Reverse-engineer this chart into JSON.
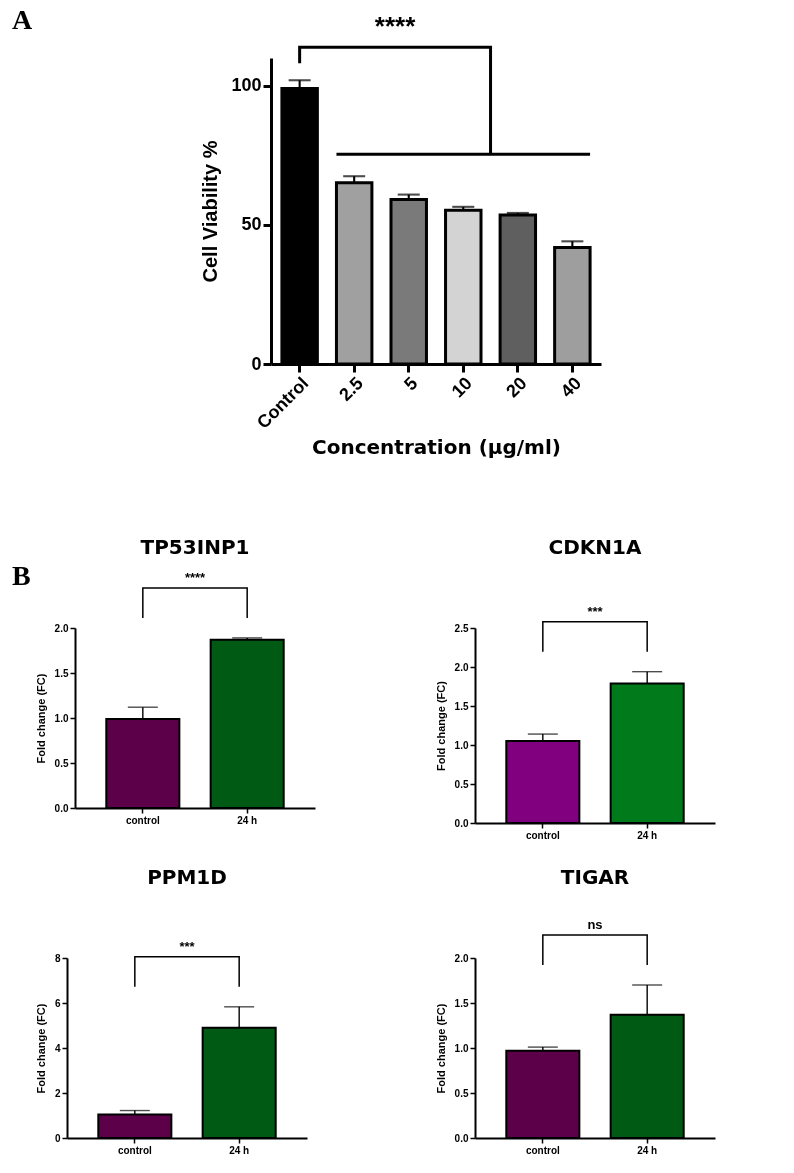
{
  "chart_data": [
    {
      "type": "bar",
      "xlabel": "Concentration (µg/ml)",
      "ylabel": "Cell Viability %",
      "categories": [
        "Control",
        "2.5",
        "5",
        "10",
        "20",
        "40"
      ],
      "values": [
        99,
        65.2,
        59.1,
        55.3,
        53.6,
        41.9
      ],
      "errors": [
        3,
        2.3,
        1.8,
        1.2,
        0.7,
        2.2
      ],
      "colors": [
        "#000000",
        "#a0a0a0",
        "#7a7a7a",
        "#d3d3d3",
        "#5f5f5f",
        "#9e9e9e"
      ],
      "ylim": [
        0,
        110
      ],
      "yticks": [
        0,
        50,
        100
      ],
      "annotations": [
        "A",
        "****"
      ]
    },
    {
      "type": "bar",
      "title": "TP53INP1",
      "ylabel": "Fold change (FC)",
      "categories": [
        "control",
        "24 h"
      ],
      "values": [
        0.99,
        1.87
      ],
      "errors": [
        0.13,
        0.02
      ],
      "colors": [
        "#5c0049",
        "#005a14"
      ],
      "ylim": [
        0,
        2
      ],
      "yticks": [
        {
          "value": 0,
          "label": "0.0"
        },
        {
          "value": 0.5,
          "label": "0.5"
        },
        {
          "value": 1,
          "label": "1.0"
        },
        {
          "value": 1.5,
          "label": "1.5"
        },
        {
          "value": 2,
          "label": "2.0"
        }
      ],
      "annotations": [
        "B",
        "****"
      ]
    },
    {
      "type": "bar",
      "title": "CDKN1A",
      "ylabel": "Fold change (FC)",
      "categories": [
        "control",
        "24 h"
      ],
      "values": [
        1.05,
        1.79
      ],
      "errors": [
        0.09,
        0.15
      ],
      "colors": [
        "#800080",
        "#007a1a"
      ],
      "ylim": [
        0,
        2.5
      ],
      "yticks": [
        {
          "value": 0,
          "label": "0.0"
        },
        {
          "value": 0.5,
          "label": "0.5"
        },
        {
          "value": 1,
          "label": "1.0"
        },
        {
          "value": 1.5,
          "label": "1.5"
        },
        {
          "value": 2,
          "label": "2.0"
        },
        {
          "value": 2.5,
          "label": "2.5"
        }
      ],
      "annotations": [
        "***"
      ]
    },
    {
      "type": "bar",
      "title": "PPM1D",
      "ylabel": "Fold change (FC)",
      "categories": [
        "control",
        "24 h"
      ],
      "values": [
        1.05,
        4.9
      ],
      "errors": [
        0.17,
        0.93
      ],
      "colors": [
        "#5c0049",
        "#005a14"
      ],
      "ylim": [
        0,
        8
      ],
      "yticks": [
        0,
        2,
        4,
        6,
        8
      ],
      "annotations": [
        "***"
      ]
    },
    {
      "type": "bar",
      "title": "TIGAR",
      "ylabel": "Fold change (FC)",
      "categories": [
        "control",
        "24 h"
      ],
      "values": [
        0.97,
        1.37
      ],
      "errors": [
        0.04,
        0.33
      ],
      "colors": [
        "#5c0049",
        "#005a14"
      ],
      "ylim": [
        0,
        2
      ],
      "yticks": [
        {
          "value": 0,
          "label": "0.0"
        },
        {
          "value": 0.5,
          "label": "0.5"
        },
        {
          "value": 1,
          "label": "1.0"
        },
        {
          "value": 1.5,
          "label": "1.5"
        },
        {
          "value": 2,
          "label": "2.0"
        }
      ],
      "annotations": [
        "ns"
      ]
    }
  ]
}
